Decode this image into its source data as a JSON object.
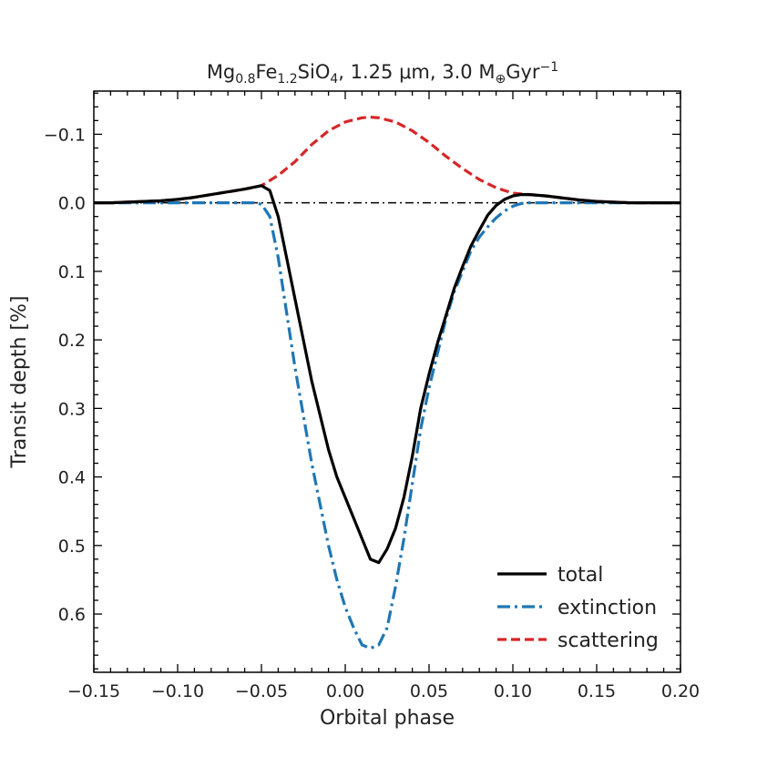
{
  "chart_data": {
    "type": "line",
    "title": {
      "mineral_base": "Mg",
      "mg_sub": "0.8",
      "fe_base": "Fe",
      "fe_sub": "1.2",
      "si_base": "SiO",
      "o_sub": "4",
      "wavelength": "1.25 μm",
      "rate": "3.0 M",
      "earth_sub": "⊕",
      "unit": "Gyr",
      "unit_sup": "−1"
    },
    "xlabel": "Orbital phase",
    "ylabel": "Transit depth [%]",
    "xlim": [
      -0.15,
      0.2
    ],
    "ylim": [
      0.685,
      -0.163
    ],
    "y_inverted": true,
    "x_ticks": [
      -0.15,
      -0.1,
      -0.05,
      0.0,
      0.05,
      0.1,
      0.15,
      0.2
    ],
    "x_tick_labels": [
      "−0.15",
      "−0.10",
      "−0.05",
      "0.00",
      "0.05",
      "0.10",
      "0.15",
      "0.20"
    ],
    "y_ticks": [
      -0.1,
      0.0,
      0.1,
      0.2,
      0.3,
      0.4,
      0.5,
      0.6
    ],
    "y_tick_labels": [
      "−0.1",
      "0.0",
      "0.1",
      "0.2",
      "0.3",
      "0.4",
      "0.5",
      "0.6"
    ],
    "zero_line": {
      "y": 0,
      "color": "#000000",
      "style": "dash-dot"
    },
    "series": [
      {
        "name": "total",
        "color": "#000000",
        "style": "solid",
        "x": [
          -0.15,
          -0.14,
          -0.13,
          -0.12,
          -0.11,
          -0.1,
          -0.09,
          -0.08,
          -0.07,
          -0.06,
          -0.05,
          -0.045,
          -0.04,
          -0.035,
          -0.03,
          -0.025,
          -0.02,
          -0.015,
          -0.01,
          -0.005,
          0.0,
          0.005,
          0.01,
          0.015,
          0.02,
          0.025,
          0.03,
          0.035,
          0.04,
          0.045,
          0.05,
          0.055,
          0.06,
          0.065,
          0.07,
          0.075,
          0.08,
          0.085,
          0.09,
          0.095,
          0.1,
          0.105,
          0.11,
          0.12,
          0.13,
          0.14,
          0.15,
          0.16,
          0.17,
          0.18,
          0.19,
          0.2
        ],
        "y": [
          0.0,
          0.0,
          -0.001,
          -0.002,
          -0.003,
          -0.005,
          -0.008,
          -0.012,
          -0.016,
          -0.02,
          -0.025,
          -0.018,
          0.02,
          0.08,
          0.14,
          0.2,
          0.26,
          0.31,
          0.36,
          0.4,
          0.43,
          0.46,
          0.49,
          0.52,
          0.525,
          0.505,
          0.475,
          0.43,
          0.37,
          0.3,
          0.25,
          0.205,
          0.165,
          0.125,
          0.093,
          0.063,
          0.04,
          0.018,
          0.004,
          -0.005,
          -0.01,
          -0.012,
          -0.012,
          -0.01,
          -0.007,
          -0.004,
          -0.002,
          -0.001,
          0.0,
          0.0,
          0.0,
          0.0
        ]
      },
      {
        "name": "extinction",
        "color": "#1f77b4",
        "style": "dash-dot",
        "x": [
          -0.15,
          -0.1,
          -0.06,
          -0.055,
          -0.05,
          -0.045,
          -0.04,
          -0.035,
          -0.03,
          -0.025,
          -0.02,
          -0.015,
          -0.01,
          -0.005,
          0.0,
          0.005,
          0.01,
          0.015,
          0.02,
          0.025,
          0.03,
          0.035,
          0.04,
          0.045,
          0.05,
          0.055,
          0.06,
          0.065,
          0.07,
          0.075,
          0.08,
          0.085,
          0.09,
          0.095,
          0.1,
          0.105,
          0.11,
          0.15,
          0.2
        ],
        "y": [
          0.0,
          0.0,
          0.0,
          0.0,
          0.002,
          0.02,
          0.08,
          0.16,
          0.24,
          0.31,
          0.38,
          0.44,
          0.5,
          0.55,
          0.59,
          0.62,
          0.645,
          0.65,
          0.645,
          0.62,
          0.56,
          0.49,
          0.41,
          0.33,
          0.27,
          0.22,
          0.17,
          0.13,
          0.1,
          0.07,
          0.05,
          0.035,
          0.022,
          0.012,
          0.005,
          0.001,
          0.0,
          0.0,
          0.0
        ]
      },
      {
        "name": "scattering",
        "color": "#d62728",
        "style": "dashed",
        "x": [
          -0.15,
          -0.14,
          -0.13,
          -0.12,
          -0.11,
          -0.1,
          -0.09,
          -0.08,
          -0.07,
          -0.06,
          -0.05,
          -0.04,
          -0.03,
          -0.02,
          -0.01,
          0.0,
          0.01,
          0.015,
          0.02,
          0.03,
          0.04,
          0.05,
          0.06,
          0.07,
          0.08,
          0.09,
          0.1,
          0.11,
          0.12,
          0.13,
          0.14,
          0.15,
          0.16,
          0.17,
          0.18,
          0.19,
          0.2
        ],
        "y": [
          0.0,
          0.0,
          -0.001,
          -0.002,
          -0.003,
          -0.005,
          -0.008,
          -0.012,
          -0.016,
          -0.02,
          -0.025,
          -0.04,
          -0.06,
          -0.085,
          -0.105,
          -0.118,
          -0.124,
          -0.125,
          -0.124,
          -0.118,
          -0.105,
          -0.088,
          -0.068,
          -0.05,
          -0.034,
          -0.022,
          -0.014,
          -0.012,
          -0.01,
          -0.007,
          -0.004,
          -0.002,
          -0.001,
          0.0,
          0.0,
          0.0,
          0.0
        ]
      }
    ],
    "legend": {
      "position": "lower-right",
      "entries": [
        "total",
        "extinction",
        "scattering"
      ]
    }
  }
}
